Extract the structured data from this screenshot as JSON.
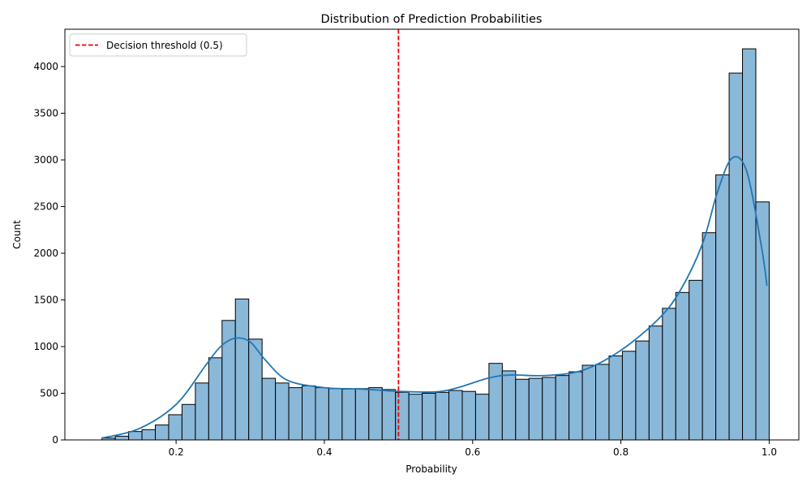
{
  "chart_data": {
    "type": "bar",
    "title": "Distribution of Prediction Probabilities",
    "xlabel": "Probability",
    "ylabel": "Count",
    "xlim": [
      0.05,
      1.04
    ],
    "ylim": [
      0,
      4400
    ],
    "grid": false,
    "legend_position": "top-left",
    "x_ticks": [
      0.2,
      0.4,
      0.6,
      0.8,
      1.0
    ],
    "x_tick_labels": [
      "0.2",
      "0.4",
      "0.6",
      "0.8",
      "1.0"
    ],
    "y_ticks": [
      0,
      500,
      1000,
      1500,
      2000,
      2500,
      3000,
      3500,
      4000
    ],
    "y_tick_labels": [
      "0",
      "500",
      "1000",
      "1500",
      "2000",
      "2500",
      "3000",
      "3500",
      "4000"
    ],
    "histogram": {
      "bin_start": 0.1,
      "bin_width": 0.018,
      "counts": [
        20,
        40,
        90,
        110,
        160,
        270,
        380,
        610,
        880,
        1280,
        1510,
        1080,
        660,
        610,
        560,
        580,
        560,
        550,
        545,
        550,
        560,
        540,
        510,
        490,
        500,
        510,
        530,
        520,
        490,
        820,
        740,
        650,
        660,
        670,
        690,
        730,
        800,
        810,
        900,
        950,
        1060,
        1220,
        1410,
        1580,
        1710,
        2220,
        2840,
        3930,
        4190,
        2550
      ],
      "fill_color": "#8ab8d9",
      "edge_color": "#000000"
    },
    "kde": {
      "color": "#1f77b4",
      "x": [
        0.1,
        0.15,
        0.2,
        0.24,
        0.26,
        0.28,
        0.3,
        0.32,
        0.35,
        0.4,
        0.45,
        0.5,
        0.55,
        0.58,
        0.62,
        0.65,
        0.7,
        0.75,
        0.8,
        0.85,
        0.88,
        0.91,
        0.93,
        0.95,
        0.97,
        0.99,
        0.997
      ],
      "y": [
        20,
        120,
        380,
        800,
        1000,
        1090,
        1050,
        860,
        640,
        560,
        545,
        520,
        515,
        560,
        660,
        695,
        690,
        750,
        960,
        1290,
        1600,
        2100,
        2650,
        3020,
        2870,
        2050,
        1650
      ]
    },
    "threshold": {
      "x": 0.5,
      "label": "Decision threshold (0.5)",
      "color": "#e8000b"
    }
  }
}
